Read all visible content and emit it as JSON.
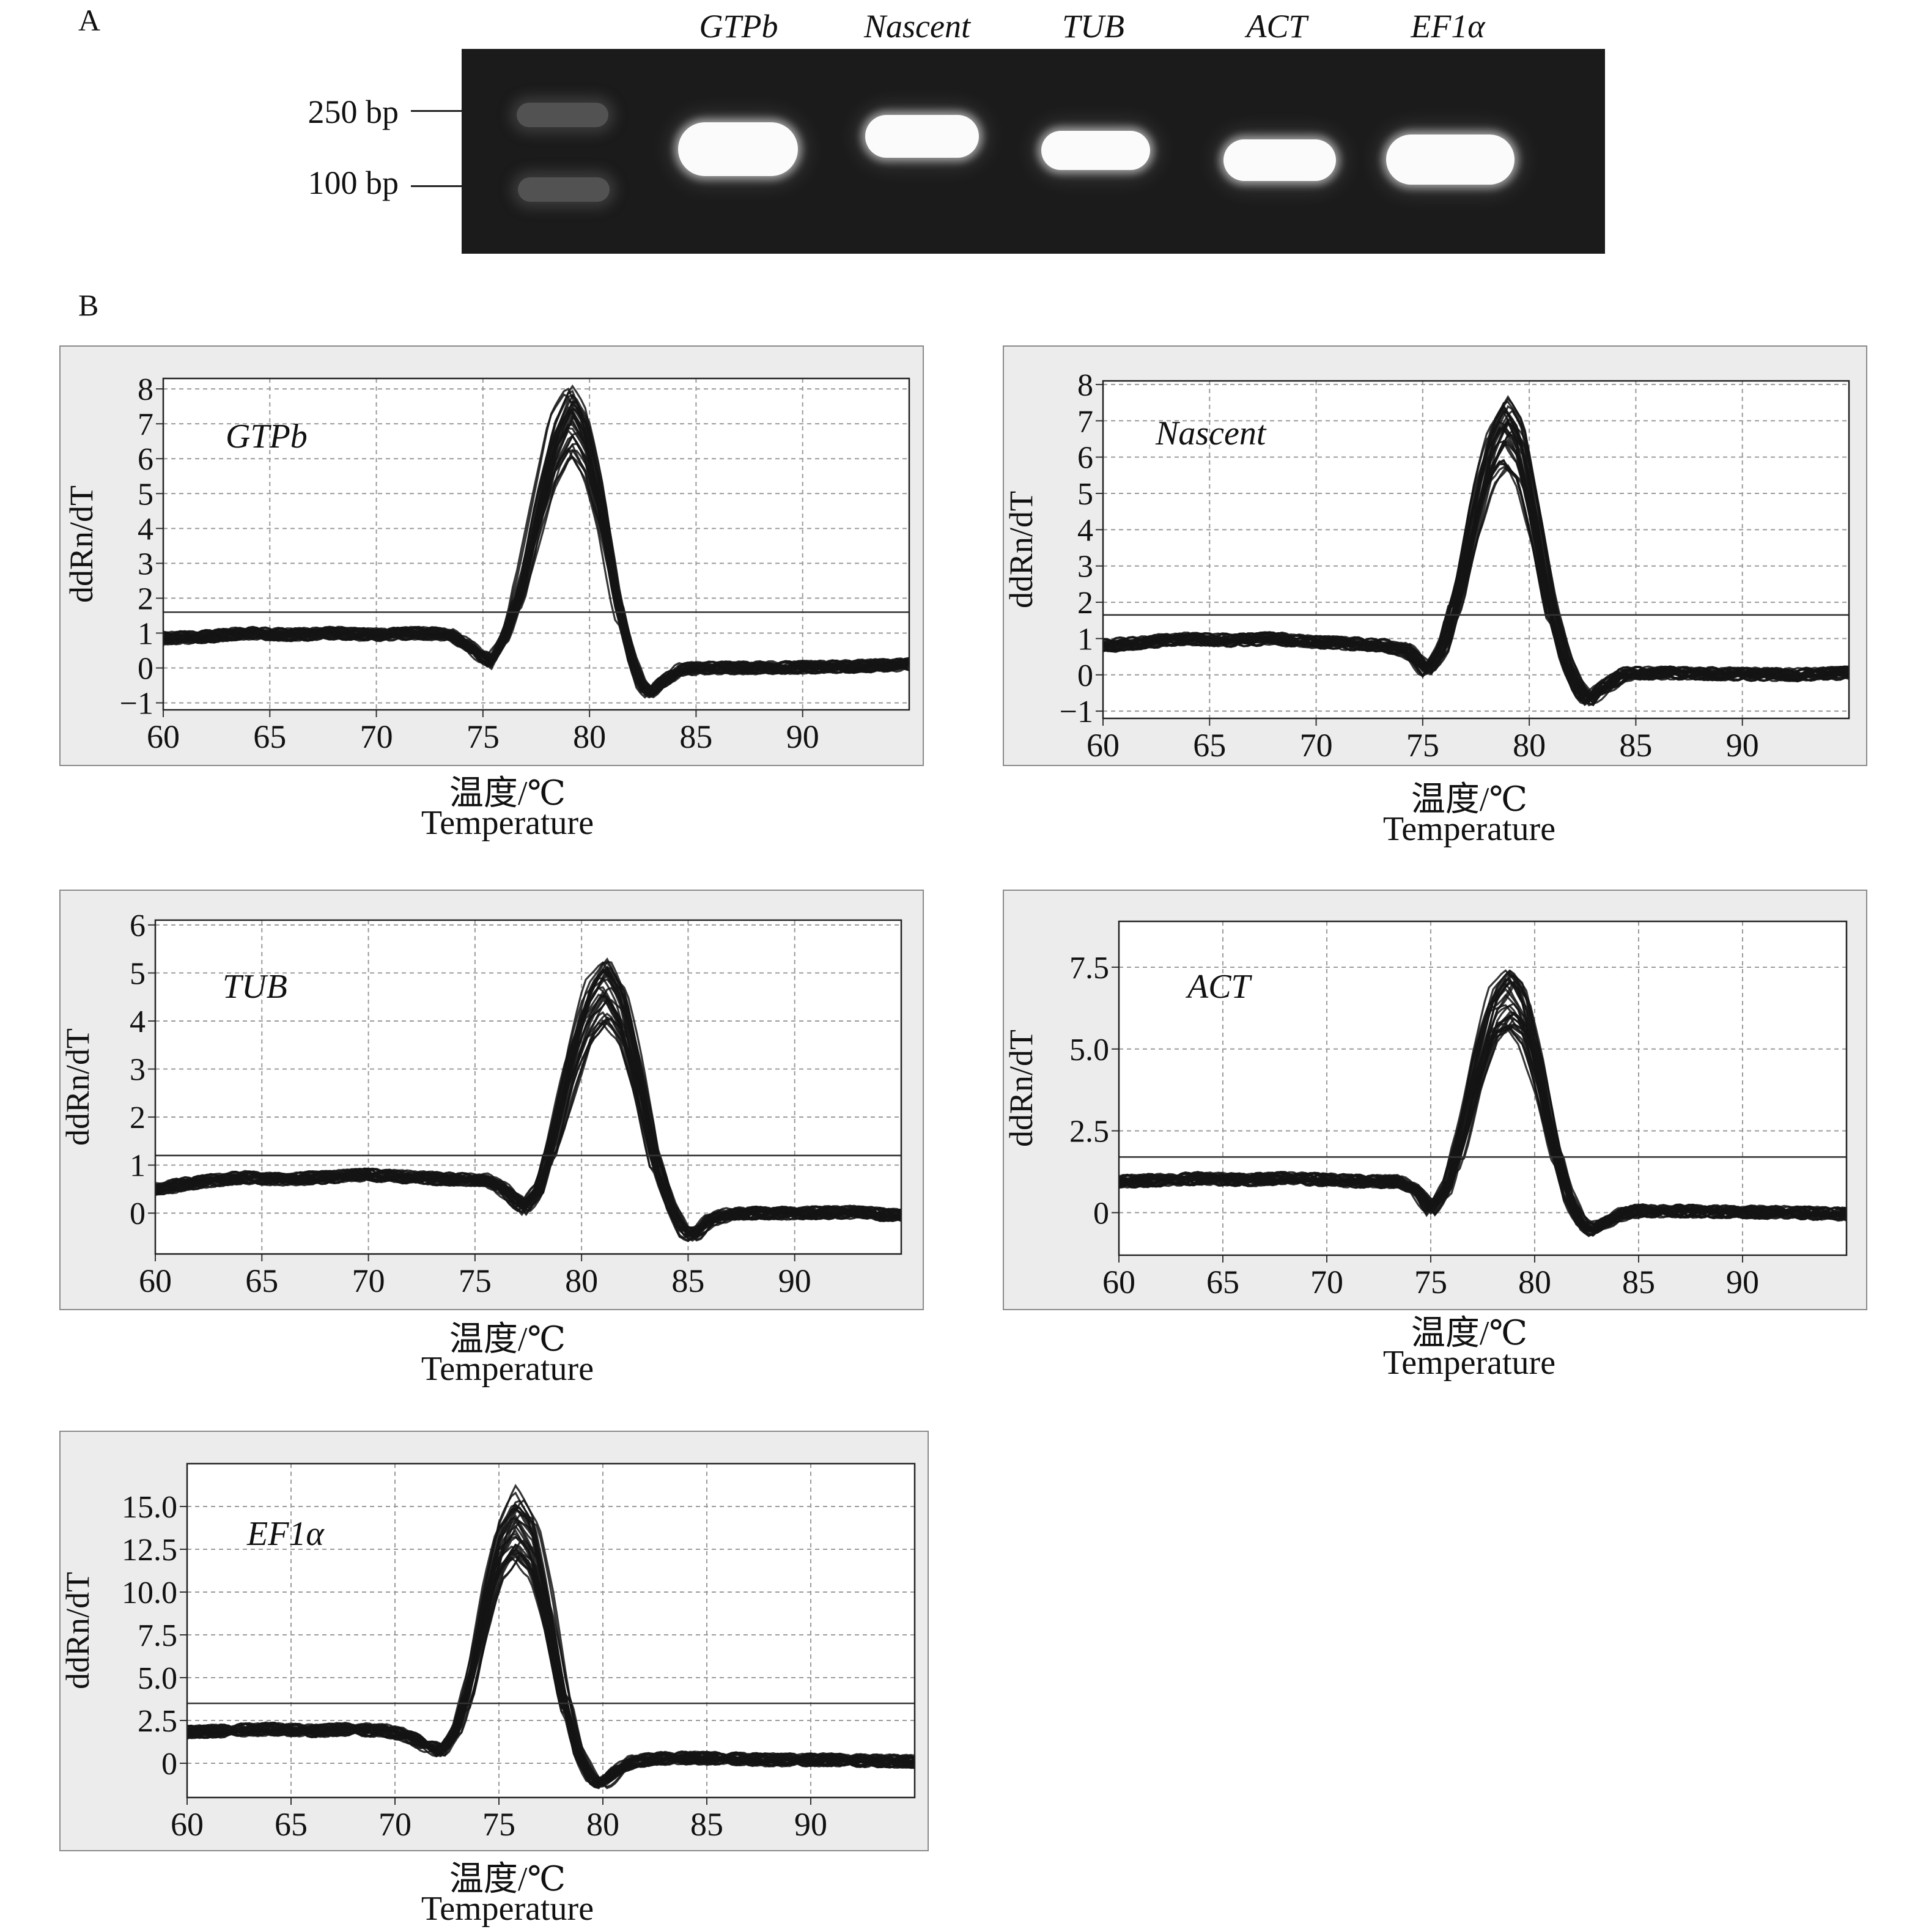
{
  "figure": {
    "panel_a_label": "A",
    "panel_b_label": "B",
    "gel": {
      "lanes": [
        "GTPb",
        "Nascent",
        "TUB",
        "ACT",
        "EF1α"
      ],
      "ladder": [
        "250 bp",
        "100 bp"
      ]
    }
  },
  "chart_data": [
    {
      "type": "line",
      "gene": "GTPb",
      "xlabel_cn": "温度/℃",
      "xlabel_en": "Temperature",
      "ylabel": "ddRn/dT",
      "xlim": [
        60,
        95
      ],
      "ylim": [
        -1.2,
        8.3
      ],
      "xticks": [
        60,
        65,
        70,
        75,
        80,
        85,
        90
      ],
      "xtick_labels": [
        "60",
        "65",
        "70",
        "75",
        "80",
        "85",
        "90"
      ],
      "yticks": [
        -1,
        0,
        1,
        2,
        3,
        4,
        5,
        6,
        7,
        8
      ],
      "ytick_labels": [
        "−1",
        "0",
        "1",
        "2",
        "3",
        "4",
        "5",
        "6",
        "7",
        "8"
      ],
      "threshold": 1.6,
      "grid": true,
      "melt_curve": {
        "x": [
          60,
          62,
          64,
          66,
          68,
          70,
          72,
          73.5,
          74.5,
          75.3,
          76,
          76.8,
          77.5,
          78.3,
          79.1,
          79.8,
          80.5,
          81.2,
          81.9,
          82.4,
          82.8,
          83.4,
          84.2,
          85,
          87,
          90,
          92.5,
          95
        ],
        "y": [
          0.85,
          0.9,
          1.0,
          0.95,
          1.0,
          0.95,
          1.0,
          0.95,
          0.5,
          0.15,
          0.9,
          2.5,
          4.5,
          6.5,
          7.5,
          6.7,
          4.8,
          2.2,
          0.3,
          -0.55,
          -0.75,
          -0.4,
          -0.05,
          0.0,
          0.0,
          0.02,
          0.05,
          0.1
        ]
      }
    },
    {
      "type": "line",
      "gene": "Nascent",
      "xlabel_cn": "温度/℃",
      "xlabel_en": "Temperature",
      "ylabel": "ddRn/dT",
      "xlim": [
        60,
        95
      ],
      "ylim": [
        -1.2,
        8.1
      ],
      "xticks": [
        60,
        65,
        70,
        75,
        80,
        85,
        90
      ],
      "xtick_labels": [
        "60",
        "65",
        "70",
        "75",
        "80",
        "85",
        "90"
      ],
      "yticks": [
        -1,
        0,
        1,
        2,
        3,
        4,
        5,
        6,
        7,
        8
      ],
      "ytick_labels": [
        "−1",
        "0",
        "1",
        "2",
        "3",
        "4",
        "5",
        "6",
        "7",
        "8"
      ],
      "threshold": 1.65,
      "grid": true,
      "melt_curve": {
        "x": [
          60,
          62,
          64,
          66,
          68,
          70,
          72,
          73.3,
          74.2,
          75.2,
          76,
          76.8,
          77.5,
          78.2,
          78.9,
          79.6,
          80.3,
          81,
          81.7,
          82.3,
          82.8,
          83.5,
          84.3,
          85,
          87,
          90,
          92.5,
          95
        ],
        "y": [
          0.8,
          0.9,
          1.0,
          0.95,
          1.0,
          0.9,
          0.85,
          0.8,
          0.7,
          0.1,
          0.8,
          2.6,
          4.7,
          6.3,
          7.1,
          6.4,
          4.4,
          2.0,
          0.4,
          -0.35,
          -0.75,
          -0.35,
          0.0,
          0.05,
          0.05,
          0.02,
          0.0,
          0.05
        ]
      }
    },
    {
      "type": "line",
      "gene": "TUB",
      "xlabel_cn": "温度/℃",
      "xlabel_en": "Temperature",
      "ylabel": "ddRn/dT",
      "xlim": [
        60,
        95
      ],
      "ylim": [
        -0.85,
        6.1
      ],
      "xticks": [
        60,
        65,
        70,
        75,
        80,
        85,
        90
      ],
      "xtick_labels": [
        "60",
        "65",
        "70",
        "75",
        "80",
        "85",
        "90"
      ],
      "yticks": [
        0,
        1,
        2,
        3,
        4,
        5,
        6
      ],
      "ytick_labels": [
        "0",
        "1",
        "2",
        "3",
        "4",
        "5",
        "6"
      ],
      "threshold": 1.2,
      "grid": true,
      "melt_curve": {
        "x": [
          60,
          62,
          64,
          66,
          68,
          70,
          72,
          74,
          75.5,
          76.5,
          77.3,
          78,
          78.7,
          79.5,
          80.3,
          81.1,
          81.9,
          82.7,
          83.4,
          84.2,
          84.8,
          85.3,
          86,
          87,
          90,
          92.5,
          95
        ],
        "y": [
          0.5,
          0.65,
          0.75,
          0.7,
          0.75,
          0.8,
          0.75,
          0.7,
          0.7,
          0.45,
          0.1,
          0.5,
          1.7,
          3.2,
          4.4,
          4.9,
          4.3,
          2.8,
          1.2,
          0.1,
          -0.4,
          -0.45,
          -0.15,
          0.0,
          0.0,
          0.02,
          -0.05
        ]
      }
    },
    {
      "type": "line",
      "gene": "ACT",
      "xlabel_cn": "温度/℃",
      "xlabel_en": "Temperature",
      "ylabel": "ddRn/dT",
      "xlim": [
        60,
        95
      ],
      "ylim": [
        -1.3,
        8.9
      ],
      "xticks": [
        60,
        65,
        70,
        75,
        80,
        85,
        90
      ],
      "xtick_labels": [
        "60",
        "65",
        "70",
        "75",
        "80",
        "85",
        "90"
      ],
      "yticks": [
        0,
        2.5,
        5.0,
        7.5
      ],
      "ytick_labels": [
        "0",
        "2.5",
        "5.0",
        "7.5"
      ],
      "threshold": 1.7,
      "grid": true,
      "melt_curve": {
        "x": [
          60,
          62,
          64,
          66,
          68,
          70,
          72,
          73.5,
          74.3,
          75,
          75.8,
          76.5,
          77.2,
          78,
          78.8,
          79.5,
          80.2,
          80.9,
          81.6,
          82.3,
          82.8,
          83.4,
          84.3,
          85,
          87,
          90,
          92.5,
          95
        ],
        "y": [
          0.95,
          1.0,
          1.05,
          1.0,
          1.05,
          1.0,
          0.95,
          0.95,
          0.7,
          0.1,
          0.8,
          2.5,
          4.6,
          6.4,
          7.0,
          6.4,
          4.5,
          2.2,
          0.5,
          -0.4,
          -0.55,
          -0.3,
          0.0,
          0.05,
          0.05,
          0.02,
          0.0,
          -0.05
        ]
      }
    },
    {
      "type": "line",
      "gene": "EF1α",
      "xlabel_cn": "温度/℃",
      "xlabel_en": "Temperature",
      "ylabel": "ddRn/dT",
      "xlim": [
        60,
        95
      ],
      "ylim": [
        -2.0,
        17.5
      ],
      "xticks": [
        60,
        65,
        70,
        75,
        80,
        85,
        90
      ],
      "xtick_labels": [
        "60",
        "65",
        "70",
        "75",
        "80",
        "85",
        "90"
      ],
      "yticks": [
        0,
        2.5,
        5.0,
        7.5,
        10.0,
        12.5,
        15.0
      ],
      "ytick_labels": [
        "0",
        "2.5",
        "5.0",
        "7.5",
        "10.0",
        "12.5",
        "15.0"
      ],
      "threshold": 3.5,
      "grid": true,
      "melt_curve": {
        "x": [
          60,
          62,
          64,
          66,
          68,
          69.5,
          70.5,
          71.5,
          72.3,
          73,
          73.7,
          74.4,
          75.1,
          75.9,
          76.7,
          77.4,
          78.1,
          78.8,
          79.5,
          80,
          80.6,
          81.5,
          83,
          85,
          88,
          91,
          95
        ],
        "y": [
          1.8,
          1.9,
          2.0,
          1.9,
          2.0,
          1.9,
          1.7,
          1.1,
          0.7,
          1.8,
          5.0,
          9.5,
          13.2,
          14.8,
          13.5,
          9.5,
          4.5,
          0.9,
          -0.9,
          -1.2,
          -0.6,
          0.1,
          0.3,
          0.3,
          0.2,
          0.2,
          0.1
        ]
      }
    }
  ]
}
